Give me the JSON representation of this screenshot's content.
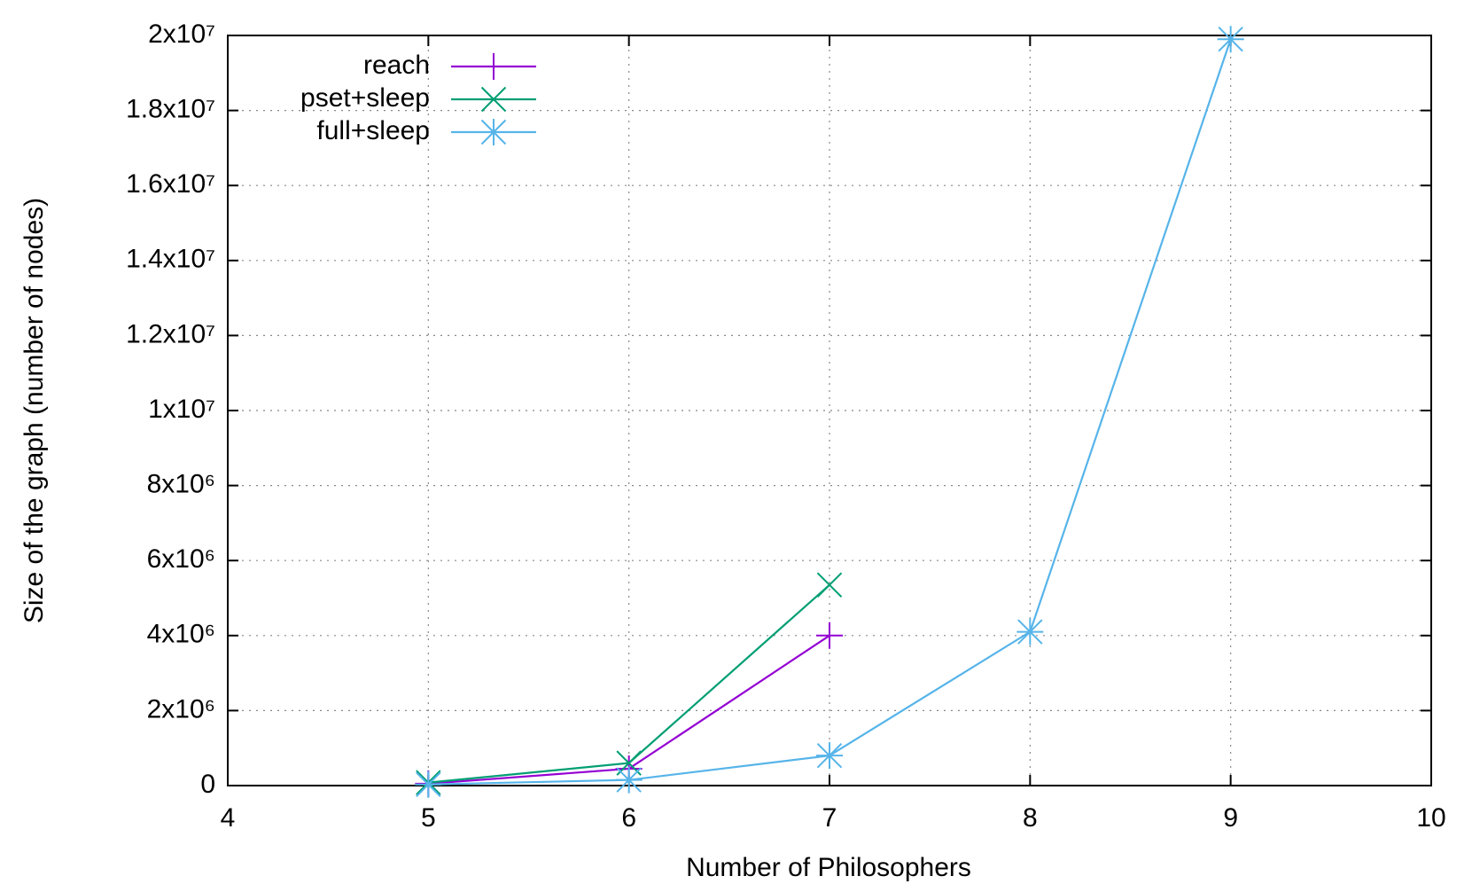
{
  "chart_data": {
    "type": "line",
    "x_label": "Number of Philosophers",
    "y_label": "Size of the graph (number of nodes)",
    "xlim": [
      4,
      10
    ],
    "xticks": [
      4,
      5,
      6,
      7,
      8,
      9,
      10
    ],
    "ylim": [
      0,
      20000000
    ],
    "yticks": [
      0,
      {
        "value": 2000000,
        "label": "2x10⁶"
      },
      {
        "value": 4000000,
        "label": "4x10⁶"
      },
      {
        "value": 6000000,
        "label": "6x10⁶"
      },
      {
        "value": 8000000,
        "label": "8x10⁶"
      },
      {
        "value": 10000000,
        "label": "1x10⁷"
      },
      {
        "value": 12000000,
        "label": "1.2x10⁷"
      },
      {
        "value": 14000000,
        "label": "1.4x10⁷"
      },
      {
        "value": 16000000,
        "label": "1.6x10⁷"
      },
      {
        "value": 18000000,
        "label": "1.8x10⁷"
      },
      {
        "value": 20000000,
        "label": "2x10⁷"
      }
    ],
    "grid": true,
    "legend": "top-left",
    "series": [
      {
        "name": "reach",
        "color": "#9400d3",
        "marker": "plus",
        "x": [
          5,
          6,
          7
        ],
        "values": [
          50000,
          450000,
          4000000
        ]
      },
      {
        "name": "pset+sleep",
        "color": "#009e73",
        "marker": "cross",
        "x": [
          5,
          6,
          7
        ],
        "values": [
          80000,
          600000,
          5350000
        ]
      },
      {
        "name": "full+sleep",
        "color": "#56b4e9",
        "marker": "star",
        "x": [
          5,
          6,
          7,
          8,
          9
        ],
        "values": [
          30000,
          150000,
          800000,
          4100000,
          19900000
        ]
      }
    ]
  }
}
